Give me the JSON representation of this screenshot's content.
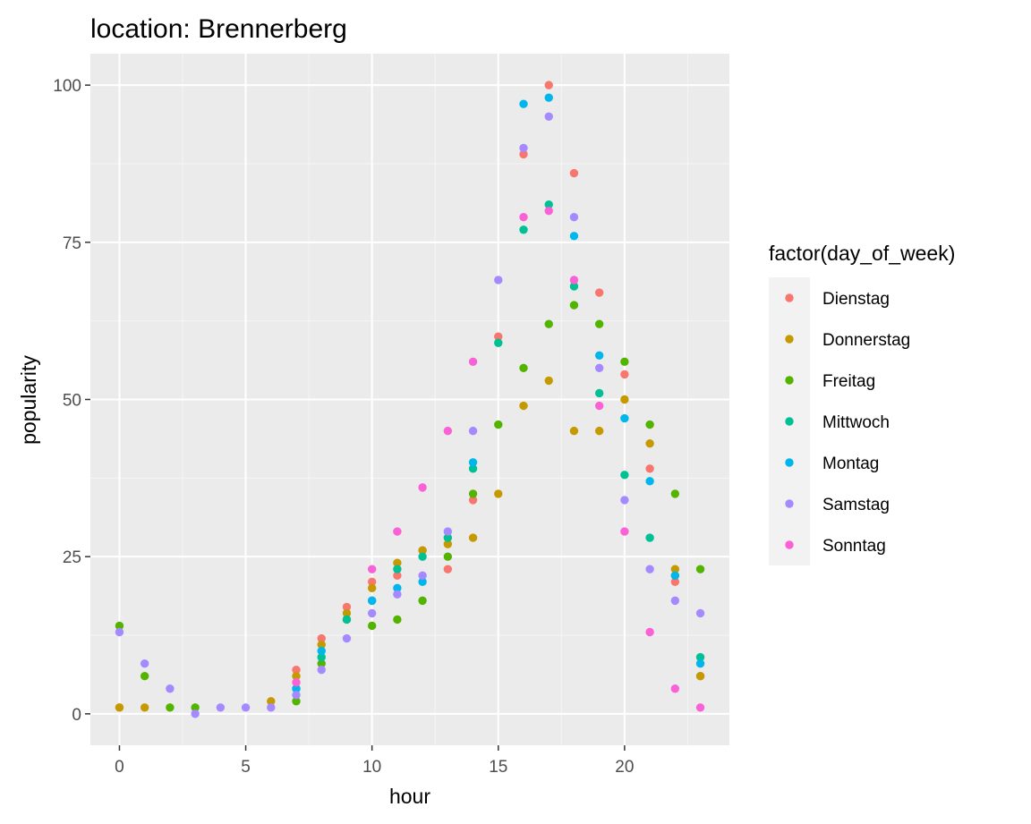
{
  "chart_data": {
    "type": "scatter",
    "title": "location: Brennerberg",
    "xlabel": "hour",
    "ylabel": "popularity",
    "xlim": [
      -1.15,
      24.15
    ],
    "ylim": [
      -5,
      105
    ],
    "xticks": [
      0,
      5,
      10,
      15,
      20
    ],
    "yticks": [
      0,
      25,
      50,
      75,
      100
    ],
    "xtick_labels": [
      "0",
      "5",
      "10",
      "15",
      "20"
    ],
    "ytick_labels": [
      "0",
      "25",
      "50",
      "75",
      "100"
    ],
    "grid": true,
    "legend_title": "factor(day_of_week)",
    "legend_position": "right",
    "series": [
      {
        "name": "Dienstag",
        "color": "#F8766D",
        "points": [
          [
            0,
            1
          ],
          [
            7,
            7
          ],
          [
            8,
            12
          ],
          [
            9,
            17
          ],
          [
            10,
            21
          ],
          [
            11,
            22
          ],
          [
            12,
            26
          ],
          [
            13,
            23
          ],
          [
            14,
            34
          ],
          [
            15,
            60
          ],
          [
            16,
            89
          ],
          [
            17,
            100
          ],
          [
            18,
            86
          ],
          [
            19,
            67
          ],
          [
            20,
            54
          ],
          [
            21,
            39
          ],
          [
            22,
            21
          ],
          [
            23,
            6
          ]
        ]
      },
      {
        "name": "Donnerstag",
        "color": "#C49A00",
        "points": [
          [
            0,
            1
          ],
          [
            1,
            1
          ],
          [
            6,
            2
          ],
          [
            7,
            6
          ],
          [
            8,
            11
          ],
          [
            9,
            16
          ],
          [
            10,
            20
          ],
          [
            11,
            24
          ],
          [
            12,
            26
          ],
          [
            13,
            27
          ],
          [
            14,
            28
          ],
          [
            15,
            35
          ],
          [
            16,
            49
          ],
          [
            17,
            53
          ],
          [
            18,
            45
          ],
          [
            19,
            45
          ],
          [
            20,
            50
          ],
          [
            21,
            43
          ],
          [
            22,
            23
          ],
          [
            23,
            6
          ]
        ]
      },
      {
        "name": "Freitag",
        "color": "#53B400",
        "points": [
          [
            0,
            14
          ],
          [
            1,
            6
          ],
          [
            2,
            1
          ],
          [
            3,
            1
          ],
          [
            7,
            2
          ],
          [
            8,
            8
          ],
          [
            9,
            15
          ],
          [
            10,
            14
          ],
          [
            11,
            15
          ],
          [
            12,
            18
          ],
          [
            13,
            25
          ],
          [
            14,
            35
          ],
          [
            15,
            46
          ],
          [
            16,
            55
          ],
          [
            17,
            62
          ],
          [
            18,
            65
          ],
          [
            19,
            62
          ],
          [
            20,
            56
          ],
          [
            21,
            46
          ],
          [
            22,
            35
          ],
          [
            23,
            23
          ]
        ]
      },
      {
        "name": "Mittwoch",
        "color": "#00C094",
        "points": [
          [
            7,
            4
          ],
          [
            8,
            9
          ],
          [
            9,
            15
          ],
          [
            10,
            18
          ],
          [
            11,
            23
          ],
          [
            12,
            25
          ],
          [
            13,
            28
          ],
          [
            14,
            39
          ],
          [
            15,
            59
          ],
          [
            16,
            77
          ],
          [
            17,
            81
          ],
          [
            18,
            68
          ],
          [
            19,
            51
          ],
          [
            20,
            38
          ],
          [
            21,
            28
          ],
          [
            22,
            22
          ],
          [
            23,
            9
          ]
        ]
      },
      {
        "name": "Montag",
        "color": "#00B6EB",
        "points": [
          [
            7,
            4
          ],
          [
            8,
            10
          ],
          [
            10,
            18
          ],
          [
            11,
            20
          ],
          [
            12,
            21
          ],
          [
            14,
            40
          ],
          [
            16,
            97
          ],
          [
            17,
            98
          ],
          [
            18,
            76
          ],
          [
            19,
            57
          ],
          [
            20,
            47
          ],
          [
            21,
            37
          ],
          [
            22,
            22
          ],
          [
            23,
            8
          ]
        ]
      },
      {
        "name": "Samstag",
        "color": "#A58AFF",
        "points": [
          [
            0,
            13
          ],
          [
            1,
            8
          ],
          [
            2,
            4
          ],
          [
            3,
            0
          ],
          [
            4,
            1
          ],
          [
            5,
            1
          ],
          [
            6,
            1
          ],
          [
            7,
            3
          ],
          [
            8,
            7
          ],
          [
            9,
            12
          ],
          [
            10,
            16
          ],
          [
            11,
            19
          ],
          [
            12,
            22
          ],
          [
            13,
            29
          ],
          [
            14,
            45
          ],
          [
            15,
            69
          ],
          [
            16,
            90
          ],
          [
            17,
            95
          ],
          [
            18,
            79
          ],
          [
            19,
            55
          ],
          [
            20,
            34
          ],
          [
            21,
            23
          ],
          [
            22,
            18
          ],
          [
            23,
            16
          ]
        ]
      },
      {
        "name": "Sonntag",
        "color": "#FB61D7",
        "points": [
          [
            7,
            5
          ],
          [
            10,
            23
          ],
          [
            11,
            29
          ],
          [
            12,
            36
          ],
          [
            13,
            45
          ],
          [
            14,
            56
          ],
          [
            16,
            79
          ],
          [
            17,
            80
          ],
          [
            18,
            69
          ],
          [
            19,
            49
          ],
          [
            20,
            29
          ],
          [
            21,
            13
          ],
          [
            22,
            4
          ],
          [
            23,
            1
          ]
        ]
      }
    ]
  },
  "colors": {
    "panel_background": "#EBEBEB",
    "grid_major": "#FFFFFF",
    "grid_minor": "#F5F5F5",
    "legend_key_background": "#F2F2F2"
  }
}
